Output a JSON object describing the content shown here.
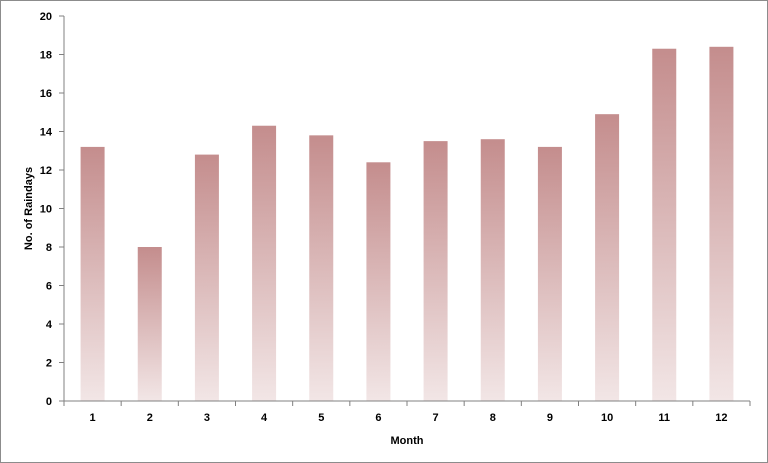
{
  "chart_data": {
    "type": "bar",
    "title": "",
    "xlabel": "Month",
    "ylabel": "No. of Raindays",
    "categories": [
      "1",
      "2",
      "3",
      "4",
      "5",
      "6",
      "7",
      "8",
      "9",
      "10",
      "11",
      "12"
    ],
    "values": [
      13.2,
      8.0,
      12.8,
      14.3,
      13.8,
      12.4,
      13.5,
      13.6,
      13.2,
      14.9,
      18.3,
      18.4
    ],
    "ylim": [
      0,
      20
    ],
    "yticks": [
      "0",
      "2",
      "4",
      "6",
      "8",
      "10",
      "12",
      "14",
      "16",
      "18",
      "20"
    ],
    "grid": false,
    "legend": "none",
    "colors": {
      "bar_top": "#c48d8d",
      "bar_bottom": "#f2e6e6",
      "axis": "#808080"
    }
  }
}
